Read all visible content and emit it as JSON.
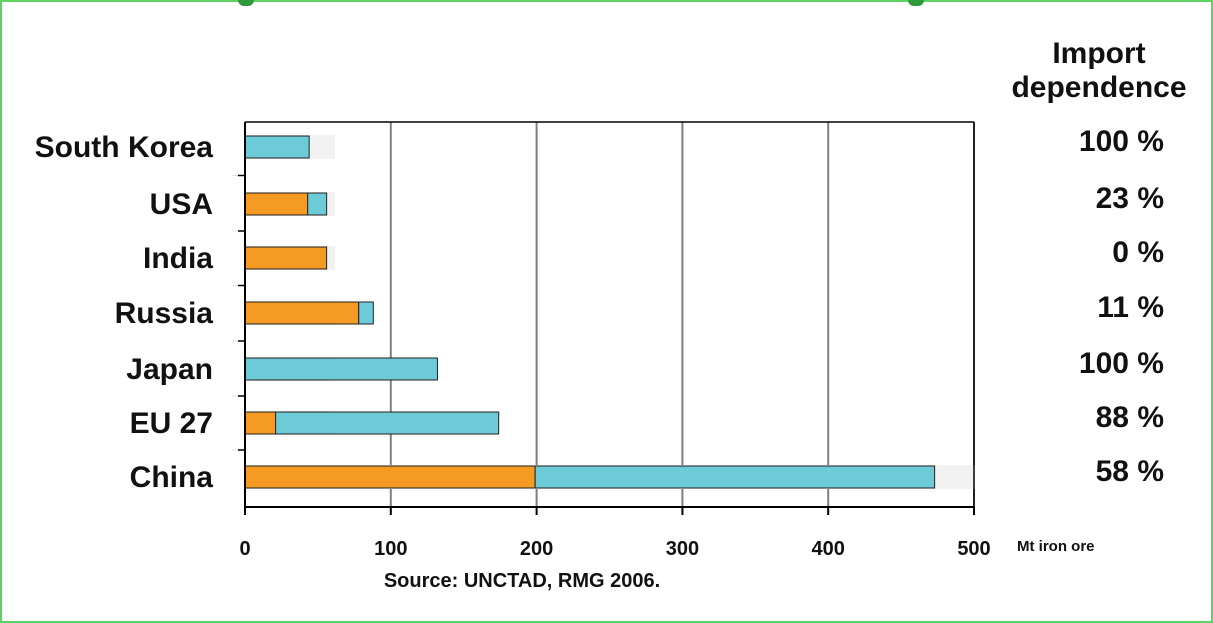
{
  "chart_data": {
    "type": "bar",
    "orientation": "horizontal",
    "stacked": true,
    "categories": [
      "South Korea",
      "USA",
      "India",
      "Russia",
      "Japan",
      "EU 27",
      "China"
    ],
    "series": [
      {
        "values": [
          0,
          43,
          56,
          78,
          0,
          21,
          199
        ],
        "color": "#f59a23"
      },
      {
        "values": [
          44,
          13,
          0,
          10,
          132,
          153,
          274
        ],
        "color": "#6ccbd6"
      }
    ],
    "import_dependence_header": [
      "Import",
      "dependence"
    ],
    "import_dependence": [
      "100 %",
      "23 %",
      "0 %",
      "11 %",
      "100 %",
      "88 %",
      "58 %"
    ],
    "xlim": [
      0,
      500
    ],
    "xticks": [
      0,
      100,
      200,
      300,
      400,
      500
    ],
    "xlabel": "Mt iron ore",
    "source": "Source: UNCTAD, RMG 2006.",
    "grid": "vertical",
    "colors": {
      "frame": "#5fd35f",
      "gridline": "#808080",
      "axis": "#000000"
    }
  }
}
